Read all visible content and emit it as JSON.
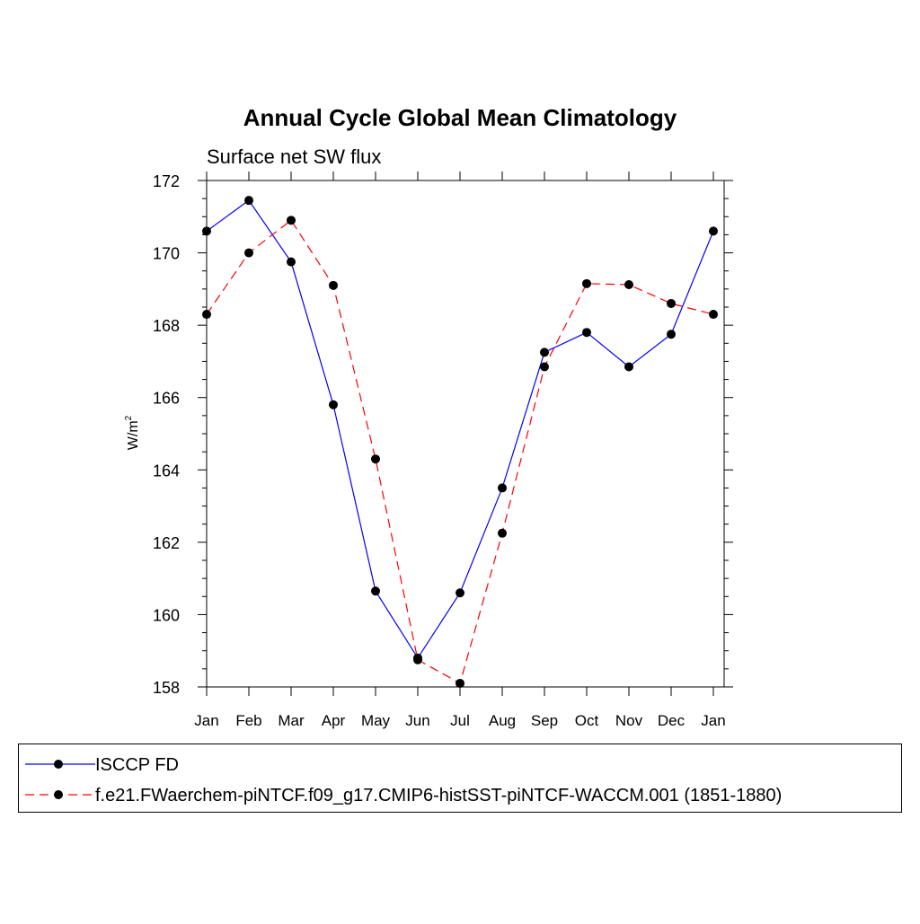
{
  "chart_data": {
    "type": "line",
    "title": "Annual Cycle Global Mean Climatology",
    "subtitle": "Surface net SW flux",
    "xlabel": "",
    "ylabel": "W/m",
    "ylabel_superscript": "2",
    "categories": [
      "Jan",
      "Feb",
      "Mar",
      "Apr",
      "May",
      "Jun",
      "Jul",
      "Aug",
      "Sep",
      "Oct",
      "Nov",
      "Dec",
      "Jan"
    ],
    "ylim": [
      158,
      172
    ],
    "yticks": [
      158,
      160,
      162,
      164,
      166,
      168,
      170,
      172
    ],
    "grid": false,
    "legend_position": "bottom",
    "series": [
      {
        "name": "ISCCP FD",
        "color": "#0000ff",
        "line_style": "solid",
        "marker": "filled-circle",
        "values": [
          170.6,
          171.45,
          169.75,
          165.8,
          160.65,
          158.8,
          160.6,
          163.5,
          167.25,
          167.8,
          166.85,
          167.75,
          170.6
        ]
      },
      {
        "name": "f.e21.FWaerchem-piNTCF.f09_g17.CMIP6-histSST-piNTCF-WACCM.001 (1851-1880)",
        "color": "#ff0000",
        "line_style": "dashed",
        "marker": "filled-circle",
        "values": [
          168.3,
          170.0,
          170.9,
          169.1,
          164.3,
          158.75,
          158.1,
          162.25,
          166.85,
          169.15,
          169.12,
          168.6,
          168.3
        ]
      }
    ]
  }
}
